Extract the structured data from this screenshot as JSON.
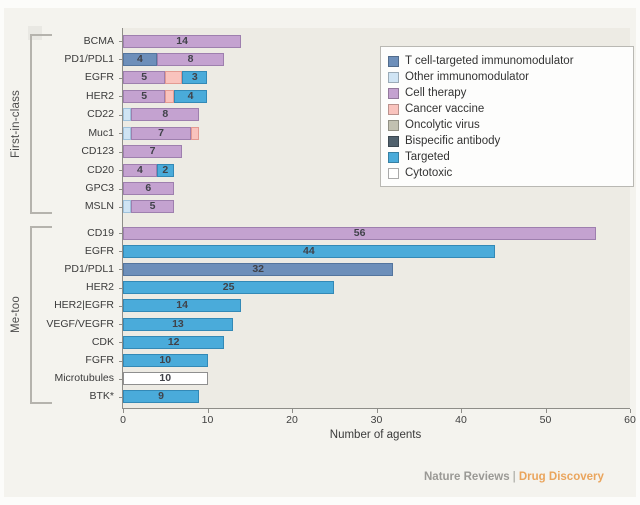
{
  "footer": {
    "journal": "Nature Reviews",
    "separator": "|",
    "title": "Drug Discovery"
  },
  "chart_data": {
    "type": "bar",
    "orientation": "horizontal",
    "stacked": true,
    "xlabel": "Number of agents",
    "xlim": [
      0,
      60
    ],
    "xticks": [
      0,
      10,
      20,
      30,
      40,
      50,
      60
    ],
    "grid": false,
    "legend_position": "upper right, boxed",
    "series_colors": {
      "t_cell_immunomodulator": {
        "fill": "#6d8fba",
        "border": "#54759e"
      },
      "other_immunomodulator": {
        "fill": "#cfe4f4",
        "border": "#9fc2dc"
      },
      "cell_therapy": {
        "fill": "#c4a2d0",
        "border": "#9e7fae"
      },
      "cancer_vaccine": {
        "fill": "#f9c3bd",
        "border": "#e39a92"
      },
      "oncolytic_virus": {
        "fill": "#c2c1b1",
        "border": "#a3a292"
      },
      "bispecific_antibody": {
        "fill": "#50616d",
        "border": "#3c4a55"
      },
      "targeted": {
        "fill": "#4aabda",
        "border": "#3389b6"
      },
      "cytotoxic": {
        "fill": "#ffffff",
        "border": "#8f8f8f"
      }
    },
    "legend": [
      {
        "key": "t_cell_immunomodulator",
        "label": "T cell-targeted immunomodulator"
      },
      {
        "key": "other_immunomodulator",
        "label": "Other immunomodulator"
      },
      {
        "key": "cell_therapy",
        "label": "Cell therapy"
      },
      {
        "key": "cancer_vaccine",
        "label": "Cancer vaccine"
      },
      {
        "key": "oncolytic_virus",
        "label": "Oncolytic virus"
      },
      {
        "key": "bispecific_antibody",
        "label": "Bispecific antibody"
      },
      {
        "key": "targeted",
        "label": "Targeted"
      },
      {
        "key": "cytotoxic",
        "label": "Cytotoxic"
      }
    ],
    "groups": [
      {
        "label": "First-in-class",
        "rows": [
          {
            "category": "BCMA",
            "segments": [
              {
                "series": "cell_therapy",
                "value": 14,
                "label": "14"
              }
            ]
          },
          {
            "category": "PD1/PDL1",
            "segments": [
              {
                "series": "t_cell_immunomodulator",
                "value": 4,
                "label": "4"
              },
              {
                "series": "cell_therapy",
                "value": 8,
                "label": "8"
              }
            ]
          },
          {
            "category": "EGFR",
            "segments": [
              {
                "series": "cell_therapy",
                "value": 5,
                "label": "5"
              },
              {
                "series": "cancer_vaccine",
                "value": 2,
                "label": ""
              },
              {
                "series": "targeted",
                "value": 3,
                "label": "3"
              }
            ]
          },
          {
            "category": "HER2",
            "segments": [
              {
                "series": "cell_therapy",
                "value": 5,
                "label": "5"
              },
              {
                "series": "cancer_vaccine",
                "value": 1,
                "label": ""
              },
              {
                "series": "targeted",
                "value": 4,
                "label": "4"
              }
            ]
          },
          {
            "category": "CD22",
            "segments": [
              {
                "series": "other_immunomodulator",
                "value": 1,
                "label": ""
              },
              {
                "series": "cell_therapy",
                "value": 8,
                "label": "8"
              }
            ]
          },
          {
            "category": "Muc1",
            "segments": [
              {
                "series": "other_immunomodulator",
                "value": 1,
                "label": ""
              },
              {
                "series": "cell_therapy",
                "value": 7,
                "label": "7"
              },
              {
                "series": "cancer_vaccine",
                "value": 1,
                "label": ""
              }
            ]
          },
          {
            "category": "CD123",
            "segments": [
              {
                "series": "cell_therapy",
                "value": 7,
                "label": "7"
              }
            ]
          },
          {
            "category": "CD20",
            "segments": [
              {
                "series": "cell_therapy",
                "value": 4,
                "label": "4"
              },
              {
                "series": "targeted",
                "value": 2,
                "label": "2"
              }
            ]
          },
          {
            "category": "GPC3",
            "segments": [
              {
                "series": "cell_therapy",
                "value": 6,
                "label": "6"
              }
            ]
          },
          {
            "category": "MSLN",
            "segments": [
              {
                "series": "other_immunomodulator",
                "value": 1,
                "label": ""
              },
              {
                "series": "cell_therapy",
                "value": 5,
                "label": "5"
              }
            ]
          }
        ]
      },
      {
        "label": "Me-too",
        "rows": [
          {
            "category": "CD19",
            "segments": [
              {
                "series": "cell_therapy",
                "value": 56,
                "label": "56"
              }
            ]
          },
          {
            "category": "EGFR",
            "segments": [
              {
                "series": "targeted",
                "value": 44,
                "label": "44"
              }
            ]
          },
          {
            "category": "PD1/PDL1",
            "segments": [
              {
                "series": "t_cell_immunomodulator",
                "value": 32,
                "label": "32"
              }
            ]
          },
          {
            "category": "HER2",
            "segments": [
              {
                "series": "targeted",
                "value": 25,
                "label": "25"
              }
            ]
          },
          {
            "category": "HER2|EGFR",
            "segments": [
              {
                "series": "targeted",
                "value": 14,
                "label": "14"
              }
            ]
          },
          {
            "category": "VEGF/VEGFR",
            "segments": [
              {
                "series": "targeted",
                "value": 13,
                "label": "13"
              }
            ]
          },
          {
            "category": "CDK",
            "segments": [
              {
                "series": "targeted",
                "value": 12,
                "label": "12"
              }
            ]
          },
          {
            "category": "FGFR",
            "segments": [
              {
                "series": "targeted",
                "value": 10,
                "label": "10"
              }
            ]
          },
          {
            "category": "Microtubules",
            "segments": [
              {
                "series": "cytotoxic",
                "value": 10,
                "label": "10"
              }
            ]
          },
          {
            "category": "BTK*",
            "segments": [
              {
                "series": "targeted",
                "value": 9,
                "label": "9"
              }
            ]
          }
        ]
      }
    ]
  }
}
